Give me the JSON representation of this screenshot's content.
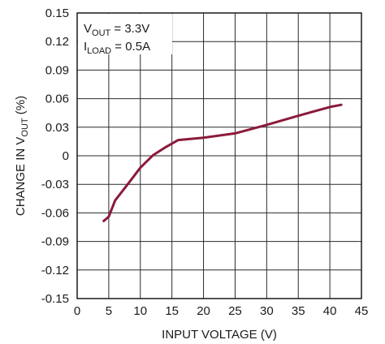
{
  "chart_data": {
    "type": "line",
    "xlabel": "INPUT VOLTAGE (V)",
    "ylabel": {
      "prefix": "CHANGE IN V",
      "sub": "OUT",
      "suffix": " (%)"
    },
    "xlim": [
      0,
      45
    ],
    "ylim": [
      -0.15,
      0.15
    ],
    "xticks": [
      "0",
      "5",
      "10",
      "15",
      "20",
      "25",
      "30",
      "35",
      "40",
      "45"
    ],
    "yticks": [
      "0.15",
      "0.12",
      "0.09",
      "0.06",
      "0.03",
      "0",
      "-0.03",
      "-0.06",
      "-0.09",
      "-0.12",
      "-0.15"
    ],
    "grid": true,
    "annotations": [
      {
        "base": "V",
        "sub": "OUT",
        "rest": " = 3.3V"
      },
      {
        "base": "I",
        "sub": "LOAD",
        "rest": " = 0.5A"
      }
    ],
    "series": [
      {
        "color": "#8b1a3a",
        "x": [
          4.2,
          5,
          6,
          8,
          10,
          12,
          14,
          16,
          20,
          25,
          30,
          35,
          40,
          41.8
        ],
        "y": [
          -0.0685,
          -0.064,
          -0.047,
          -0.03,
          -0.0125,
          0.0005,
          0.009,
          0.0165,
          0.019,
          0.0235,
          0.0325,
          0.042,
          0.0512,
          0.0535
        ]
      }
    ]
  }
}
